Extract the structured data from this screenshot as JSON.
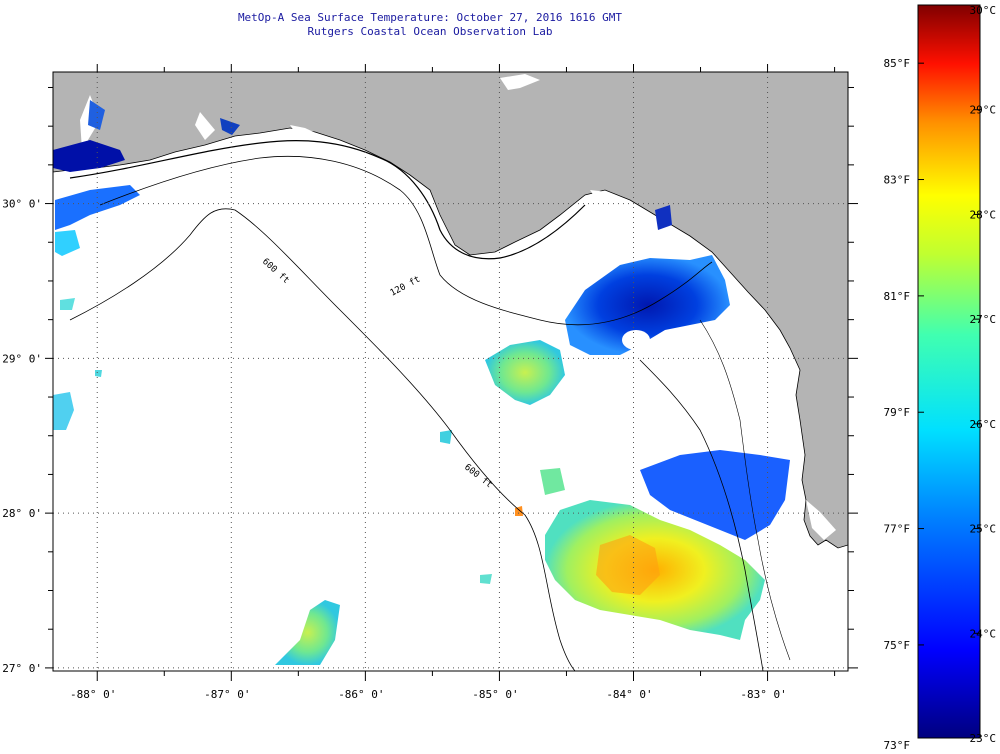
{
  "header": {
    "title": "MetOp-A Sea Surface Temperature:  October 27, 2016 1616 GMT",
    "subtitle": "Rutgers Coastal Ocean Observation Lab"
  },
  "map": {
    "lon_range": [
      -88.33,
      -82.4
    ],
    "lat_range": [
      26.98,
      30.85
    ],
    "lon_ticks": [
      {
        "value": -88,
        "label": "-88° 0'"
      },
      {
        "value": -87,
        "label": "-87° 0'"
      },
      {
        "value": -86,
        "label": "-86° 0'"
      },
      {
        "value": -85,
        "label": "-85° 0'"
      },
      {
        "value": -84,
        "label": "-84° 0'"
      },
      {
        "value": -83,
        "label": "-83° 0'"
      }
    ],
    "lat_ticks": [
      {
        "value": 30,
        "label": "30° 0'"
      },
      {
        "value": 29,
        "label": "29° 0'"
      },
      {
        "value": 28,
        "label": "28° 0'"
      },
      {
        "value": 27,
        "label": "27° 0'"
      }
    ],
    "contour_labels": [
      "120 ft",
      "600 ft",
      "600 ft"
    ],
    "colors": {
      "land": "#b4b4b4",
      "no_data": "#ffffff",
      "grid": "#555555"
    }
  },
  "colorbar": {
    "celsius": [
      "30°C",
      "29°C",
      "28°C",
      "27°C",
      "26°C",
      "25°C",
      "24°C",
      "23°C"
    ],
    "fahrenheit": [
      "85°F",
      "83°F",
      "81°F",
      "79°F",
      "77°F",
      "75°F",
      "73°F"
    ],
    "min_c": 23,
    "max_c": 30
  }
}
